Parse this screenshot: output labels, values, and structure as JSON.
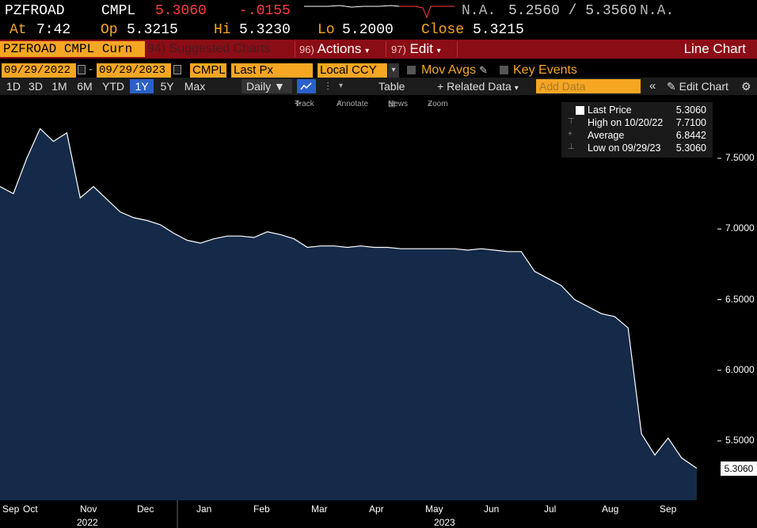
{
  "header": {
    "ticker": "PZFROAD",
    "type": "CMPL",
    "last": "5.3060",
    "change": "-.0155",
    "na_left": "N.A.",
    "bid_ask": "5.2560 / 5.3560",
    "na_right": "N.A.",
    "at_label": "At",
    "at_value": "7:42",
    "open_label": "Op",
    "open_value": "5.3215",
    "high_label": "Hi",
    "high_value": "5.3230",
    "low_label": "Lo",
    "low_value": "5.2000",
    "close_label": "Close",
    "close_value": "5.3215"
  },
  "toolbar1": {
    "security": "PZFROAD CMPL Curn",
    "suggested_num": "94)",
    "suggested": "Suggested Charts",
    "actions_num": "96)",
    "actions": "Actions",
    "edit_num": "97)",
    "edit": "Edit",
    "view": "Line Chart"
  },
  "toolbar2": {
    "start_date": "09/29/2022",
    "end_date": "09/29/2023",
    "source": "CMPL",
    "field": "Last Px",
    "currency": "Local CCY",
    "mov_avgs": "Mov Avgs",
    "key_events": "Key Events"
  },
  "toolbar3": {
    "ranges": [
      "1D",
      "3D",
      "1M",
      "6M",
      "YTD",
      "1Y",
      "5Y",
      "Max"
    ],
    "active_range": "1Y",
    "frequency": "Daily",
    "table": "Table",
    "related_data": "Related Data",
    "add_data_placeholder": "Add Data",
    "edit_chart": "Edit Chart"
  },
  "tools": {
    "track": "Track",
    "annotate": "Annotate",
    "news": "News",
    "zoom": "Zoom"
  },
  "legend": {
    "last_label": "Last Price",
    "last_value": "5.3060",
    "high_label": "High on 10/20/22",
    "high_value": "7.7100",
    "avg_label": "Average",
    "avg_value": "6.8442",
    "low_label": "Low on 09/29/23",
    "low_value": "5.3060"
  },
  "colors": {
    "accent_orange": "#f5a623",
    "negative_red": "#ff3b3b",
    "toolbar_red": "#8b0d16",
    "area_fill": "#152a48",
    "line": "#ffffff"
  },
  "chart_data": {
    "type": "area",
    "title": "",
    "xlabel": "",
    "ylabel": "",
    "ylim": [
      5.15,
      7.85
    ],
    "y_ticks": [
      "7.5000",
      "7.0000",
      "6.5000",
      "6.0000",
      "5.5000"
    ],
    "x_month_labels": [
      "Sep",
      "Oct",
      "Nov",
      "Dec",
      "Jan",
      "Feb",
      "Mar",
      "Apr",
      "May",
      "Jun",
      "Jul",
      "Aug",
      "Sep"
    ],
    "x_year_labels": [
      "2022",
      "2023"
    ],
    "last_value_label": "5.3060",
    "x": [
      "2022-09-29",
      "2022-10-06",
      "2022-10-13",
      "2022-10-20",
      "2022-10-27",
      "2022-11-03",
      "2022-11-10",
      "2022-11-17",
      "2022-11-24",
      "2022-12-01",
      "2022-12-08",
      "2022-12-15",
      "2022-12-22",
      "2022-12-29",
      "2023-01-05",
      "2023-01-12",
      "2023-01-19",
      "2023-01-26",
      "2023-02-02",
      "2023-02-09",
      "2023-02-16",
      "2023-02-23",
      "2023-03-02",
      "2023-03-09",
      "2023-03-16",
      "2023-03-23",
      "2023-03-30",
      "2023-04-06",
      "2023-04-13",
      "2023-04-20",
      "2023-04-27",
      "2023-05-04",
      "2023-05-11",
      "2023-05-18",
      "2023-05-25",
      "2023-06-01",
      "2023-06-08",
      "2023-06-15",
      "2023-06-22",
      "2023-06-29",
      "2023-07-06",
      "2023-07-13",
      "2023-07-20",
      "2023-07-27",
      "2023-08-03",
      "2023-08-10",
      "2023-08-17",
      "2023-08-24",
      "2023-08-31",
      "2023-09-07",
      "2023-09-14",
      "2023-09-21",
      "2023-09-29"
    ],
    "series": [
      {
        "values": [
          7.3,
          7.25,
          7.5,
          7.71,
          7.62,
          7.68,
          7.22,
          7.3,
          7.21,
          7.12,
          7.08,
          7.06,
          7.03,
          6.97,
          6.92,
          6.9,
          6.93,
          6.95,
          6.95,
          6.94,
          6.98,
          6.96,
          6.93,
          6.87,
          6.88,
          6.88,
          6.87,
          6.88,
          6.87,
          6.87,
          6.86,
          6.86,
          6.86,
          6.86,
          6.86,
          6.85,
          6.86,
          6.85,
          6.84,
          6.84,
          6.7,
          6.65,
          6.6,
          6.5,
          6.45,
          6.4,
          6.38,
          6.3,
          5.55,
          5.4,
          5.52,
          5.38,
          5.306
        ]
      }
    ],
    "grid": false
  }
}
